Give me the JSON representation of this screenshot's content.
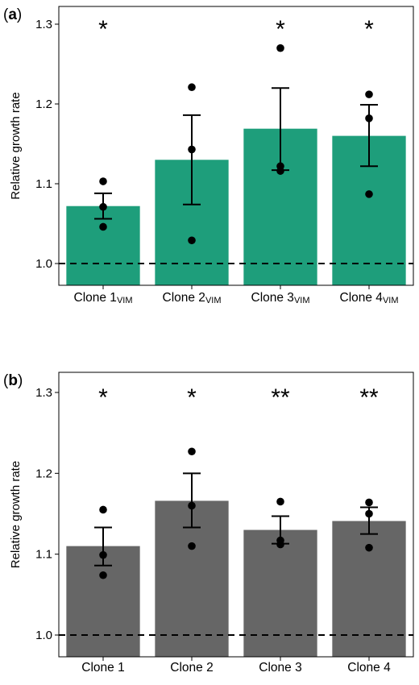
{
  "chart_data": [
    {
      "type": "bar",
      "panel_label": "a",
      "ylabel": "Relative growth rate",
      "ylim": [
        0.975,
        1.33
      ],
      "yticks": [
        1.0,
        1.1,
        1.2,
        1.3
      ],
      "ytick_labels": [
        "1.0",
        "1.1",
        "1.2",
        "1.3"
      ],
      "reference_line": 1.0,
      "bar_color": "#1e9e7b",
      "categories": [
        {
          "main": "Clone 1",
          "sub": "VIM"
        },
        {
          "main": "Clone 2",
          "sub": "VIM"
        },
        {
          "main": "Clone 3",
          "sub": "VIM"
        },
        {
          "main": "Clone 4",
          "sub": "VIM"
        }
      ],
      "values": [
        1.072,
        1.13,
        1.169,
        1.16
      ],
      "error_low": [
        1.056,
        1.074,
        1.117,
        1.122
      ],
      "error_high": [
        1.088,
        1.186,
        1.22,
        1.199
      ],
      "points": [
        [
          1.103,
          1.071,
          1.046
        ],
        [
          1.221,
          1.143,
          1.029
        ],
        [
          1.27,
          1.122,
          1.116
        ],
        [
          1.212,
          1.182,
          1.087
        ]
      ],
      "significance": [
        "*",
        "",
        "*",
        "*"
      ]
    },
    {
      "type": "bar",
      "panel_label": "b",
      "ylabel": "Relative growth rate",
      "ylim": [
        0.975,
        1.33
      ],
      "yticks": [
        1.0,
        1.1,
        1.2,
        1.3
      ],
      "ytick_labels": [
        "1.0",
        "1.1",
        "1.2",
        "1.3"
      ],
      "reference_line": 1.0,
      "bar_color": "#666666",
      "categories": [
        {
          "main": "Clone 1",
          "sub": ""
        },
        {
          "main": "Clone 2",
          "sub": ""
        },
        {
          "main": "Clone 3",
          "sub": ""
        },
        {
          "main": "Clone 4",
          "sub": ""
        }
      ],
      "values": [
        1.11,
        1.166,
        1.13,
        1.141
      ],
      "error_low": [
        1.086,
        1.133,
        1.113,
        1.125
      ],
      "error_high": [
        1.133,
        1.2,
        1.147,
        1.158
      ],
      "points": [
        [
          1.155,
          1.099,
          1.074
        ],
        [
          1.227,
          1.16,
          1.11
        ],
        [
          1.165,
          1.117,
          1.112
        ],
        [
          1.164,
          1.15,
          1.108
        ]
      ],
      "significance": [
        "*",
        "*",
        "**",
        "**"
      ]
    }
  ]
}
